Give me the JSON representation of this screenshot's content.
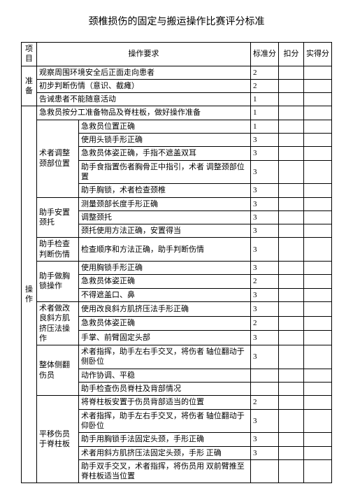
{
  "title": "颈椎损伤的固定与搬运操作比赛评分标准",
  "headers": {
    "project": "项目",
    "requirement": "操作要求",
    "standard": "标准分",
    "deduct": "扣分",
    "actual": "实得分"
  },
  "sections": {
    "prep": {
      "name": "准备",
      "rows": [
        {
          "text": "观察周围环境安全后正面走向患者",
          "score": "2"
        },
        {
          "text": "初步判断伤情（意识、截瘫）",
          "score": "2"
        },
        {
          "text": "告诫患者不能随意活动",
          "score": "1"
        }
      ]
    },
    "op": {
      "name": "操作",
      "introRow": {
        "text": "急救员按分工准备物品及脊柱板，做好操作准备",
        "score": "1"
      },
      "groups": [
        {
          "label": "术者调整颈部位置",
          "rows": [
            {
              "text": "急救员位置正确",
              "score": "1"
            },
            {
              "text": "使用头锁手形正确",
              "score": "3"
            },
            {
              "text": "急救员体姿正确，手指不遮盖双耳",
              "score": "3"
            },
            {
              "text": "助手食指置伤者胸骨正中指引，术者 调整颈部位置",
              "score": "3"
            },
            {
              "text": "助手胸锁，术者检查颈椎",
              "score": "3"
            }
          ]
        },
        {
          "label": "助手安置颈托",
          "rows": [
            {
              "text": "测量颈部长度手形正确",
              "score": "3"
            },
            {
              "text": "调整颈托",
              "score": "3"
            },
            {
              "text": "颈托使用方法正确，安置得当",
              "score": "3"
            }
          ]
        },
        {
          "label": "助手检查判断伤情",
          "rows": [
            {
              "text": "检查顺序和方法正确，助手判断伤情",
              "score": "3"
            }
          ]
        },
        {
          "label": "助手做胸锁操作",
          "rows": [
            {
              "text": "使用胸锁手形正确",
              "score": "3"
            },
            {
              "text": "急救员体姿正确",
              "score": "2"
            },
            {
              "text": "不得遮盖口、鼻",
              "score": "3"
            }
          ]
        },
        {
          "label": "术者做改良斜方肌挤压法操作",
          "rows": [
            {
              "text": "使用改良斜方肌挤压法手形正确",
              "score": "3"
            },
            {
              "text": "急救员体姿正确",
              "score": "2"
            },
            {
              "text": "手掌、前臂固定头部",
              "score": "3"
            }
          ]
        },
        {
          "label": "整体侧翻伤员",
          "rows": [
            {
              "text": "术者指挥，助手左右手交叉，将伤者 轴位翻动于侧卧位",
              "score": "3"
            },
            {
              "text": "动作协调、平稳",
              "score": ""
            },
            {
              "text": "助手检查伤员脊柱及背部情况",
              "score": ""
            }
          ]
        },
        {
          "label": "平移伤员于脊柱板",
          "rows": [
            {
              "text": "将脊柱板安置于伤员背部适当的位置",
              "score": "2"
            },
            {
              "text": "术者指挥，助手左右手交叉，将伤者 轴位翻动于仰卧位",
              "score": "3"
            },
            {
              "text": "助手用胸锁手法固定头颈，手形正确",
              "score": "3"
            },
            {
              "text": "术者用斜方肌挤压法固定头颈，手形 正确",
              "score": "3"
            },
            {
              "text": "助手双手交叉，术者指挥，将伤员用 双前臂推至脊柱板适当位置",
              "score": ""
            }
          ]
        }
      ]
    }
  }
}
